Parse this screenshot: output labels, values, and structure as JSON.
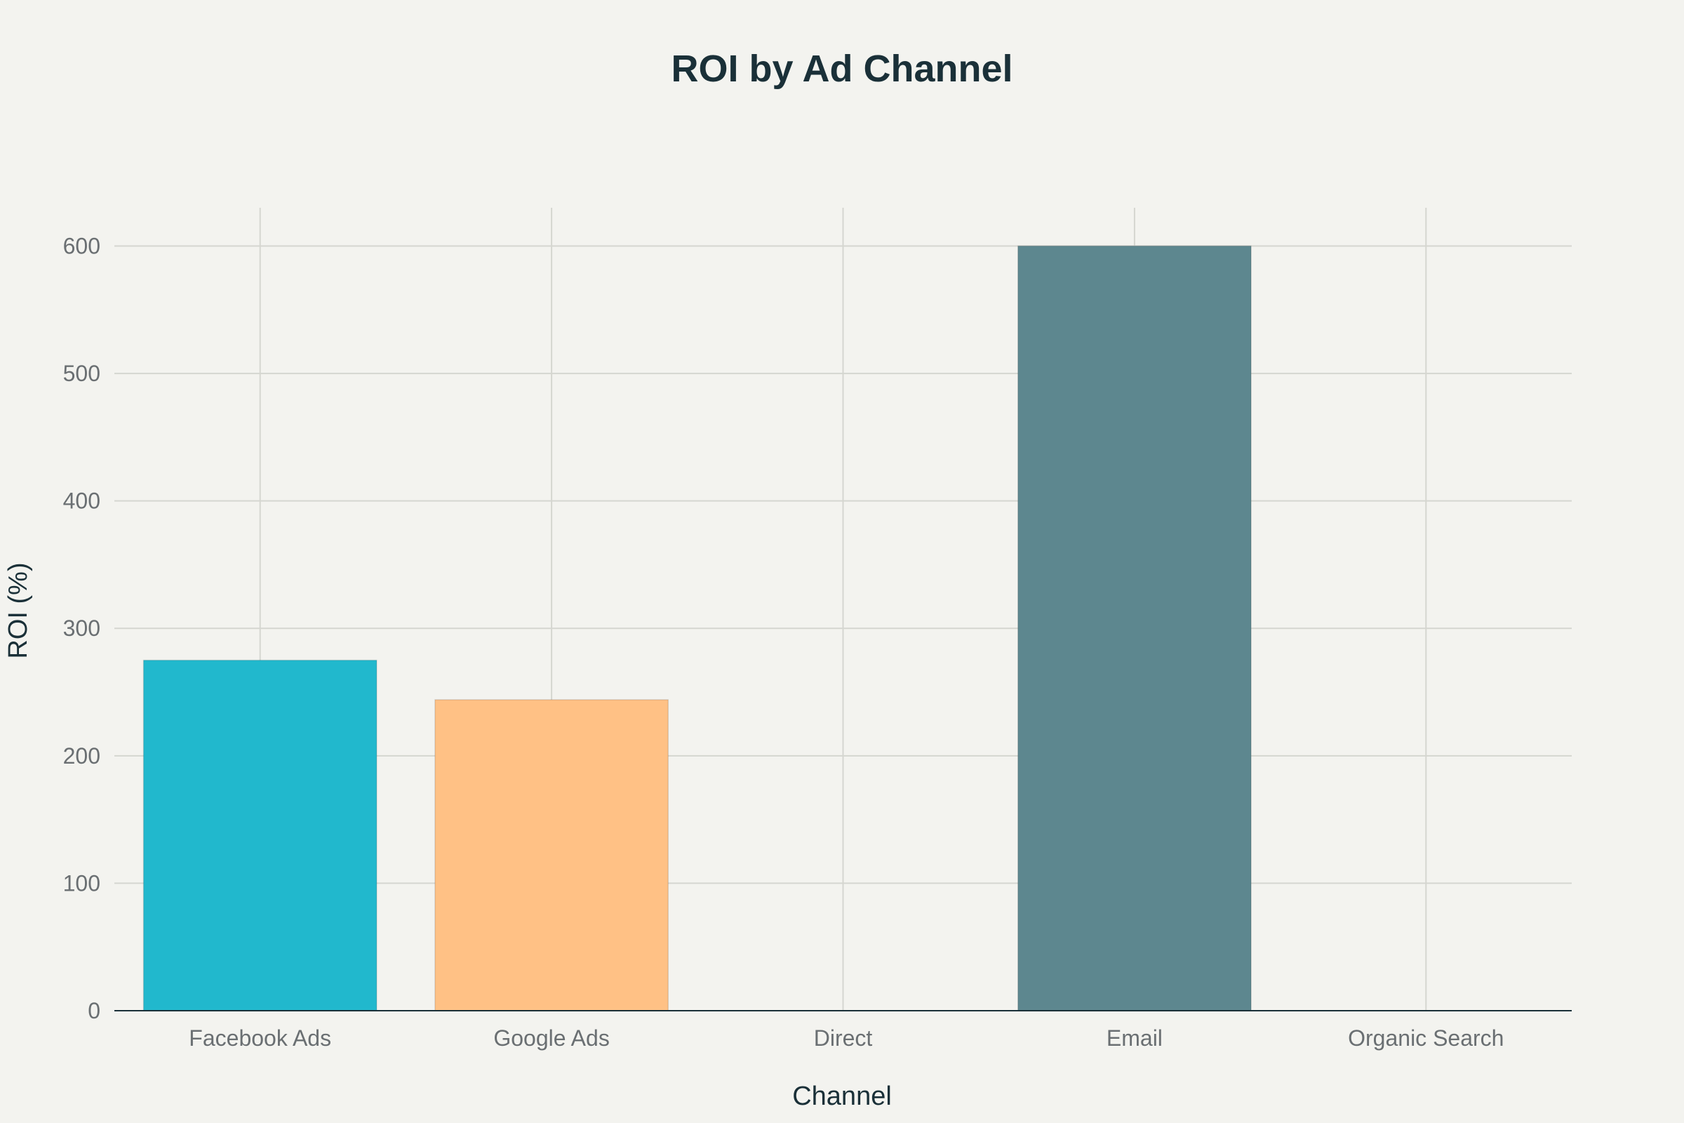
{
  "chart_data": {
    "type": "bar",
    "title": "ROI by Ad Channel",
    "xlabel": "Channel",
    "ylabel": "ROI (%)",
    "categories": [
      "Facebook Ads",
      "Google Ads",
      "Direct",
      "Email",
      "Organic Search"
    ],
    "values": [
      275,
      244,
      0,
      600,
      0
    ],
    "colors": [
      "#21b8cd",
      "#ffc185",
      "#5d878f",
      "#5d878f",
      "#5d878f"
    ],
    "ylim": [
      0,
      630
    ],
    "yticks": [
      0,
      100,
      200,
      300,
      400,
      500,
      600
    ],
    "ytick_labels": [
      "0",
      "100",
      "200",
      "300",
      "400",
      "500",
      "600"
    ],
    "grid": true,
    "background": "#f3f3ef"
  }
}
